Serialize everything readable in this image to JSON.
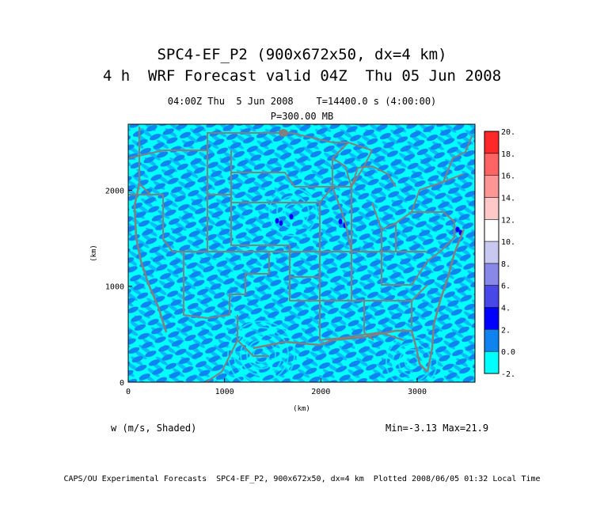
{
  "title_line1": "SPC4-EF_P2 (900x672x50, dx=4 km)",
  "title_line2": "4 h  WRF Forecast valid 04Z  Thu 05 Jun 2008",
  "subtitle_time": "04:00Z Thu  5 Jun 2008    T=14400.0 s (4:00:00)",
  "subtitle_level": "P=300.00 MB",
  "variable_label": "w (m/s, Shaded)",
  "minmax_label": "Min=-3.13 Max=21.9",
  "credit_line": "CAPS/OU Experimental Forecasts  SPC4-EF_P2, 900x672x50, dx=4 km  Plotted 2008/06/05 01:32 Local Time",
  "colors": {
    "background_field": "#00ffff",
    "secondary_field": "#0f84f0",
    "boundaries": "#808080"
  },
  "chart_data": {
    "type": "heatmap",
    "title": "SPC4-EF_P2 (900x672x50, dx=4 km)",
    "xlabel": "(km)",
    "ylabel": "(km)",
    "xlim": [
      0,
      3600
    ],
    "ylim": [
      0,
      2688
    ],
    "x_ticks": [
      0,
      1000,
      2000,
      3000
    ],
    "y_ticks": [
      0,
      1000,
      2000
    ],
    "colorbar": {
      "levels": [
        -2,
        0,
        2,
        4,
        6,
        8,
        10,
        12,
        14,
        16,
        18,
        20
      ],
      "labels": [
        "-2.",
        "0.0",
        "2.",
        "4.",
        "6.",
        "8.",
        "10.",
        "12.",
        "14.",
        "16.",
        "18.",
        "20."
      ],
      "colors": [
        "#00ffff",
        "#0f84f0",
        "#0000ff",
        "#4848e8",
        "#8888e8",
        "#c8c8f0",
        "#ffffff",
        "#ffc8c8",
        "#ff9696",
        "#ff6464",
        "#ff2828",
        "#ff0000"
      ]
    }
  }
}
